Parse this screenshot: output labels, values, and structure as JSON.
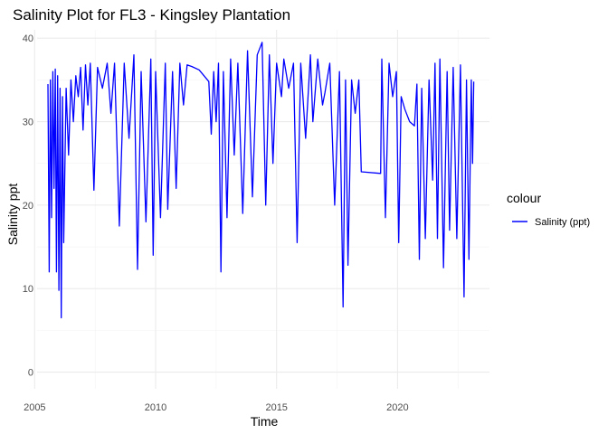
{
  "chart_data": {
    "type": "line",
    "title": "Salinity Plot for FL3 - Kingsley Plantation",
    "xlabel": "Time",
    "ylabel": "Salinity ppt",
    "xlim": [
      2005.1,
      2023.8
    ],
    "ylim": [
      -2,
      41
    ],
    "x_ticks": [
      2005,
      2010,
      2015,
      2020
    ],
    "x_tick_labels": [
      "2005",
      "2010",
      "2015",
      "2020"
    ],
    "y_ticks": [
      0,
      10,
      20,
      30,
      40
    ],
    "y_tick_labels": [
      "0",
      "10",
      "20",
      "30",
      "40"
    ],
    "grid": true,
    "legend": {
      "position": "right",
      "title": "colour",
      "entries": [
        {
          "label": "Salinity (ppt)",
          "color": "#0000ff"
        }
      ]
    },
    "series": [
      {
        "name": "Salinity (ppt)",
        "color": "#0000ff",
        "points": [
          [
            2005.55,
            34.5
          ],
          [
            2005.6,
            12.0
          ],
          [
            2005.65,
            35.0
          ],
          [
            2005.7,
            18.5
          ],
          [
            2005.75,
            36.0
          ],
          [
            2005.8,
            22.0
          ],
          [
            2005.85,
            36.3
          ],
          [
            2005.9,
            12.0
          ],
          [
            2005.95,
            35.5
          ],
          [
            2006.0,
            9.8
          ],
          [
            2006.05,
            34.0
          ],
          [
            2006.1,
            6.5
          ],
          [
            2006.15,
            33.0
          ],
          [
            2006.2,
            15.5
          ],
          [
            2006.3,
            34.0
          ],
          [
            2006.4,
            26.0
          ],
          [
            2006.5,
            35.0
          ],
          [
            2006.6,
            30.0
          ],
          [
            2006.7,
            35.5
          ],
          [
            2006.8,
            33.0
          ],
          [
            2006.9,
            36.5
          ],
          [
            2007.0,
            29.0
          ],
          [
            2007.1,
            36.8
          ],
          [
            2007.2,
            32.0
          ],
          [
            2007.3,
            37.0
          ],
          [
            2007.45,
            21.8
          ],
          [
            2007.6,
            36.5
          ],
          [
            2007.8,
            34.0
          ],
          [
            2008.0,
            37.0
          ],
          [
            2008.15,
            31.0
          ],
          [
            2008.3,
            37.0
          ],
          [
            2008.5,
            17.5
          ],
          [
            2008.7,
            37.0
          ],
          [
            2008.9,
            28.0
          ],
          [
            2009.1,
            38.0
          ],
          [
            2009.25,
            12.3
          ],
          [
            2009.4,
            36.0
          ],
          [
            2009.6,
            18.0
          ],
          [
            2009.8,
            37.5
          ],
          [
            2009.9,
            14.0
          ],
          [
            2010.0,
            36.0
          ],
          [
            2010.2,
            18.5
          ],
          [
            2010.4,
            37.0
          ],
          [
            2010.5,
            19.5
          ],
          [
            2010.7,
            36.0
          ],
          [
            2010.85,
            22.0
          ],
          [
            2011.0,
            37.0
          ],
          [
            2011.15,
            32.0
          ],
          [
            2011.3,
            36.8
          ],
          [
            2011.5,
            36.6
          ],
          [
            2011.8,
            36.2
          ],
          [
            2012.2,
            34.8
          ],
          [
            2012.3,
            28.5
          ],
          [
            2012.4,
            36.0
          ],
          [
            2012.5,
            30.0
          ],
          [
            2012.6,
            37.0
          ],
          [
            2012.7,
            12.0
          ],
          [
            2012.8,
            36.0
          ],
          [
            2012.95,
            18.5
          ],
          [
            2013.1,
            37.5
          ],
          [
            2013.25,
            26.0
          ],
          [
            2013.4,
            37.0
          ],
          [
            2013.6,
            19.0
          ],
          [
            2013.8,
            38.5
          ],
          [
            2014.0,
            21.0
          ],
          [
            2014.2,
            38.0
          ],
          [
            2014.4,
            39.5
          ],
          [
            2014.55,
            20.0
          ],
          [
            2014.7,
            38.0
          ],
          [
            2014.85,
            25.0
          ],
          [
            2015.0,
            37.0
          ],
          [
            2015.2,
            33.0
          ],
          [
            2015.3,
            37.5
          ],
          [
            2015.5,
            34.0
          ],
          [
            2015.7,
            37.0
          ],
          [
            2015.85,
            15.5
          ],
          [
            2016.0,
            37.0
          ],
          [
            2016.2,
            28.0
          ],
          [
            2016.4,
            38.0
          ],
          [
            2016.5,
            30.0
          ],
          [
            2016.7,
            37.5
          ],
          [
            2016.9,
            32.0
          ],
          [
            2017.0,
            33.5
          ],
          [
            2017.2,
            37.0
          ],
          [
            2017.4,
            20.0
          ],
          [
            2017.6,
            36.0
          ],
          [
            2017.75,
            7.8
          ],
          [
            2017.85,
            35.0
          ],
          [
            2017.95,
            12.8
          ],
          [
            2018.1,
            35.0
          ],
          [
            2018.25,
            31.0
          ],
          [
            2018.4,
            35.0
          ],
          [
            2018.5,
            24.0
          ],
          [
            2019.3,
            23.8
          ],
          [
            2019.35,
            37.5
          ],
          [
            2019.5,
            18.5
          ],
          [
            2019.65,
            37.0
          ],
          [
            2019.8,
            33.0
          ],
          [
            2019.95,
            36.0
          ],
          [
            2020.05,
            15.5
          ],
          [
            2020.15,
            33.0
          ],
          [
            2020.3,
            31.5
          ],
          [
            2020.5,
            30.0
          ],
          [
            2020.7,
            29.5
          ],
          [
            2020.8,
            34.5
          ],
          [
            2020.9,
            13.5
          ],
          [
            2021.0,
            34.0
          ],
          [
            2021.15,
            16.0
          ],
          [
            2021.3,
            35.0
          ],
          [
            2021.45,
            23.0
          ],
          [
            2021.55,
            37.0
          ],
          [
            2021.65,
            16.0
          ],
          [
            2021.75,
            37.5
          ],
          [
            2021.9,
            12.5
          ],
          [
            2022.05,
            36.0
          ],
          [
            2022.15,
            17.0
          ],
          [
            2022.3,
            36.5
          ],
          [
            2022.45,
            16.0
          ],
          [
            2022.6,
            36.8
          ],
          [
            2022.75,
            9.0
          ],
          [
            2022.85,
            35.0
          ],
          [
            2022.95,
            13.5
          ],
          [
            2023.05,
            35.0
          ],
          [
            2023.1,
            25.0
          ],
          [
            2023.15,
            34.8
          ]
        ]
      }
    ]
  }
}
